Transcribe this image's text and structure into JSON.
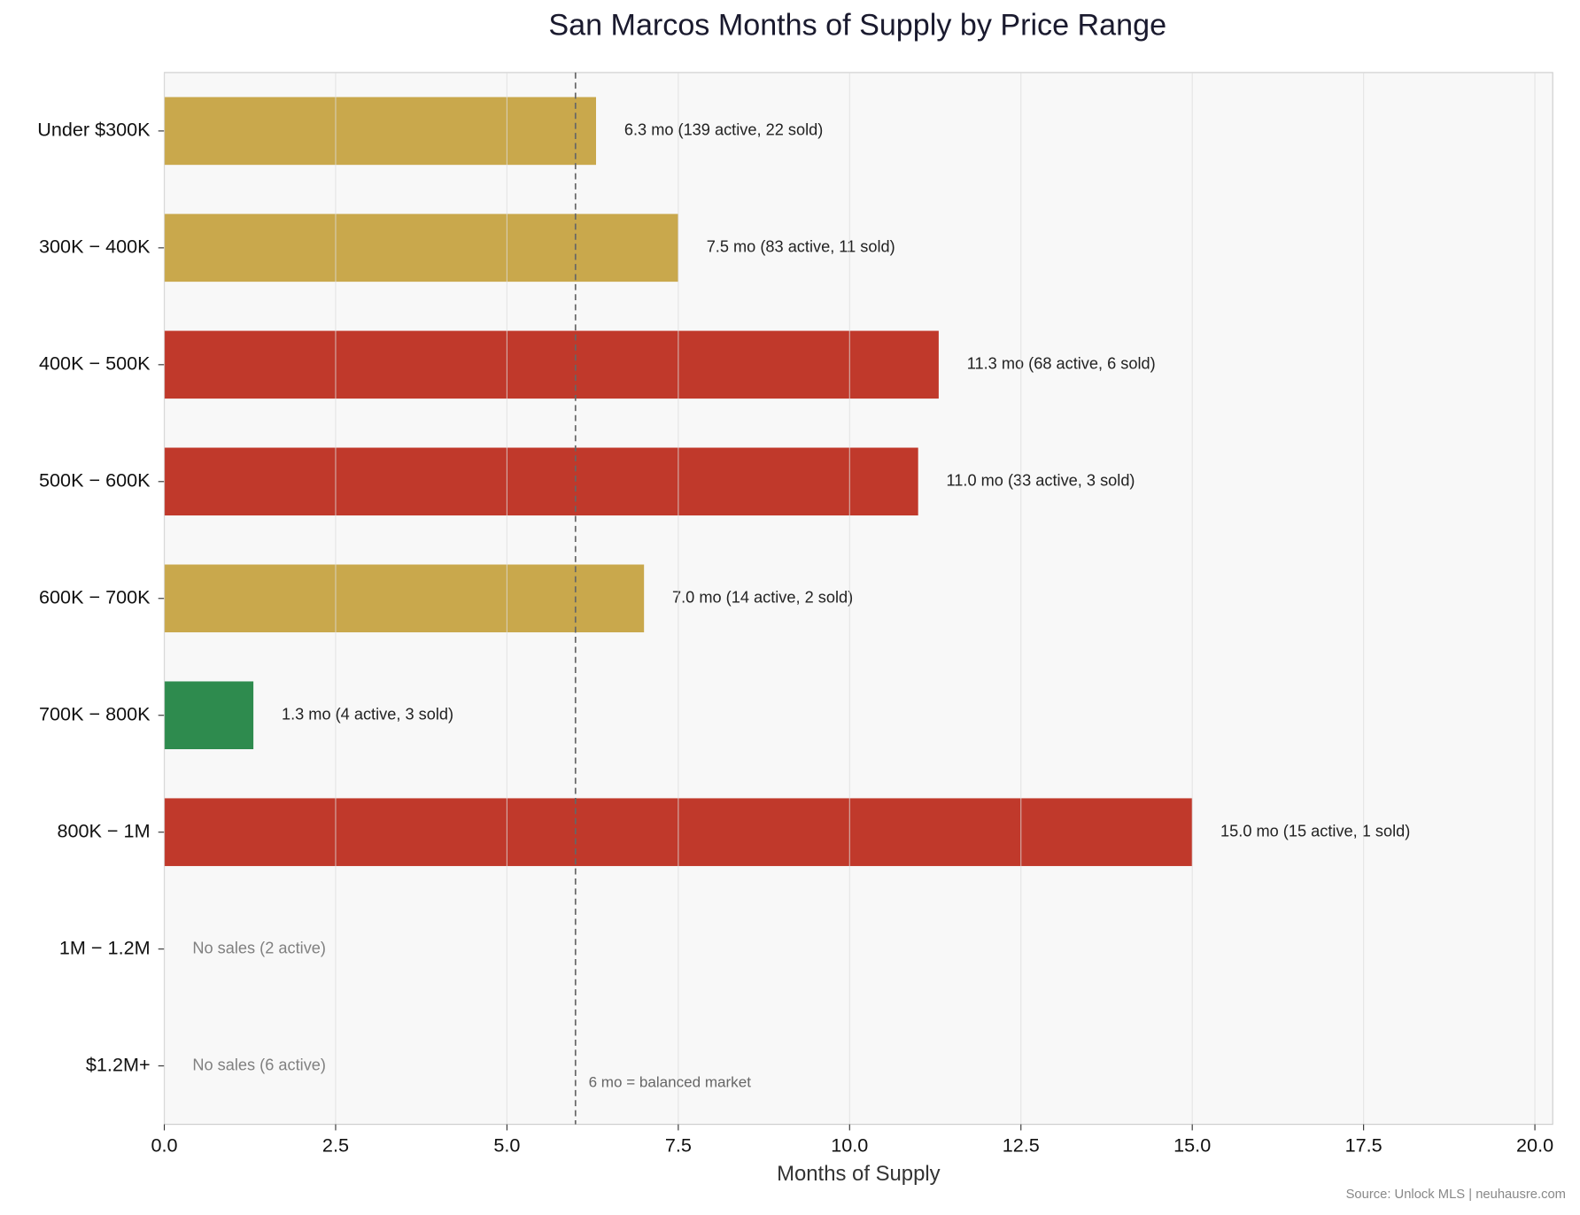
{
  "chart_data": {
    "type": "bar",
    "orientation": "horizontal",
    "title": "San Marcos Months of Supply by Price Range",
    "categories": [
      "Under $300K",
      "300K − 400K",
      "400K − 500K",
      "500K − 600K",
      "600K − 700K",
      "700K − 800K",
      "800K − 1M",
      "1M − 1.2M",
      "$1.2M+"
    ],
    "values": [
      6.3,
      7.5,
      11.3,
      11.0,
      7.0,
      1.3,
      15.0,
      null,
      null
    ],
    "value_labels": [
      "6.3 mo  (139 active, 22 sold)",
      "7.5 mo  (83 active, 11 sold)",
      "11.3 mo  (68 active, 6 sold)",
      "11.0 mo  (33 active, 3 sold)",
      "7.0 mo  (14 active, 2 sold)",
      "1.3 mo  (4 active, 3 sold)",
      "15.0 mo  (15 active, 1 sold)",
      "No sales  (2 active)",
      "No sales  (6 active)"
    ],
    "colors": [
      "#c9a84c",
      "#c9a84c",
      "#c0392b",
      "#c0392b",
      "#c9a84c",
      "#2e8b4e",
      "#c0392b",
      null,
      null
    ],
    "xlabel": "Months of Supply",
    "xlim": [
      0,
      20.26
    ],
    "xticks": [
      {
        "value": 0,
        "label": "0.0"
      },
      {
        "value": 2.5,
        "label": "2.5"
      },
      {
        "value": 5,
        "label": "5.0"
      },
      {
        "value": 7.5,
        "label": "7.5"
      },
      {
        "value": 10,
        "label": "10.0"
      },
      {
        "value": 12.5,
        "label": "12.5"
      },
      {
        "value": 15,
        "label": "15.0"
      },
      {
        "value": 17.5,
        "label": "17.5"
      },
      {
        "value": 20,
        "label": "20.0"
      }
    ],
    "grid": true,
    "reference_line": {
      "value": 6,
      "label": "6 mo = balanced market"
    },
    "source": "Source: Unlock MLS | neuhausre.com"
  }
}
